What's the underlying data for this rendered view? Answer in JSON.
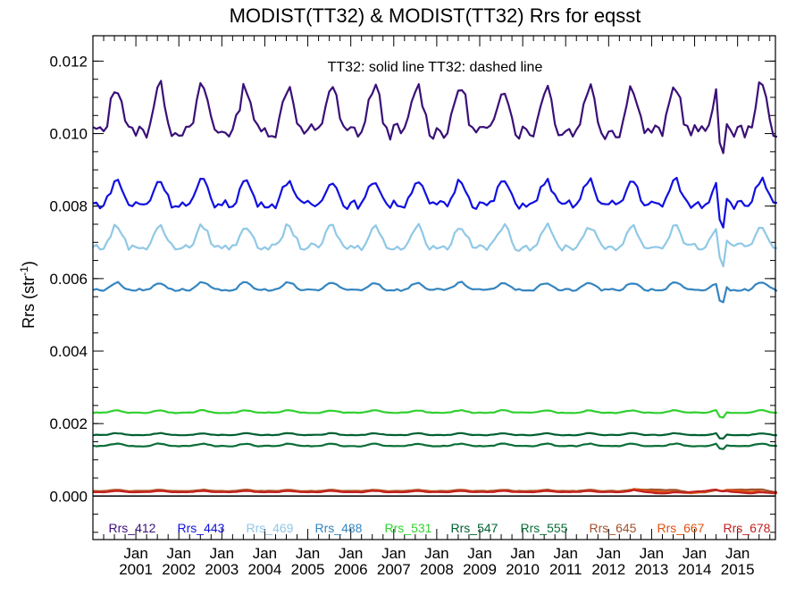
{
  "chart_data": {
    "type": "line",
    "title": "MODIST(TT32) & MODIST(TT32)  Rrs for eqsst",
    "subtitle": "TT32: solid line   TT32: dashed line",
    "xlabel": "",
    "ylabel": "Rrs (str",
    "ylabel_sup": "-1",
    "ylabel_close": ")",
    "xlim": [
      2000.0,
      2015.88
    ],
    "ylim": [
      -0.0012,
      0.0127
    ],
    "y_ticks": [
      0.0,
      0.002,
      0.004,
      0.006,
      0.008,
      0.01,
      0.012
    ],
    "y_tick_labels": [
      "0.000",
      "0.002",
      "0.004",
      "0.006",
      "0.008",
      "0.010",
      "0.012"
    ],
    "x_tick_labels": [
      {
        "month": "Jan",
        "year": "2001"
      },
      {
        "month": "Jan",
        "year": "2002"
      },
      {
        "month": "Jan",
        "year": "2003"
      },
      {
        "month": "Jan",
        "year": "2004"
      },
      {
        "month": "Jan",
        "year": "2005"
      },
      {
        "month": "Jan",
        "year": "2006"
      },
      {
        "month": "Jan",
        "year": "2007"
      },
      {
        "month": "Jan",
        "year": "2008"
      },
      {
        "month": "Jan",
        "year": "2009"
      },
      {
        "month": "Jan",
        "year": "2010"
      },
      {
        "month": "Jan",
        "year": "2011"
      },
      {
        "month": "Jan",
        "year": "2012"
      },
      {
        "month": "Jan",
        "year": "2013"
      },
      {
        "month": "Jan",
        "year": "2014"
      },
      {
        "month": "Jan",
        "year": "2015"
      }
    ],
    "reference_line_y": 0.0,
    "series": [
      {
        "name": "Rrs_412",
        "color": "#3a1078",
        "base": 0.01045,
        "amp": 0.00075
      },
      {
        "name": "Rrs_443",
        "color": "#1010e0",
        "base": 0.00825,
        "amp": 0.0004
      },
      {
        "name": "Rrs_469",
        "color": "#90c8e6",
        "base": 0.00705,
        "amp": 0.00035
      },
      {
        "name": "Rrs_488",
        "color": "#3585c0",
        "base": 0.00575,
        "amp": 0.00012
      },
      {
        "name": "Rrs_531",
        "color": "#30d030",
        "base": 0.00232,
        "amp": 4e-05
      },
      {
        "name": "Rrs_547",
        "color": "#006030",
        "base": 0.0017,
        "amp": 3e-05
      },
      {
        "name": "Rrs_555",
        "color": "#0b6e38",
        "base": 0.0014,
        "amp": 4e-05
      },
      {
        "name": "Rrs_645",
        "color": "#a0522d",
        "base": 0.00015,
        "amp": 2e-05
      },
      {
        "name": "Rrs_667",
        "color": "#e05010",
        "base": 0.00013,
        "amp": 2e-05
      },
      {
        "name": "Rrs_678",
        "color": "#c02020",
        "base": 0.00012,
        "amp": 2e-05
      }
    ]
  }
}
